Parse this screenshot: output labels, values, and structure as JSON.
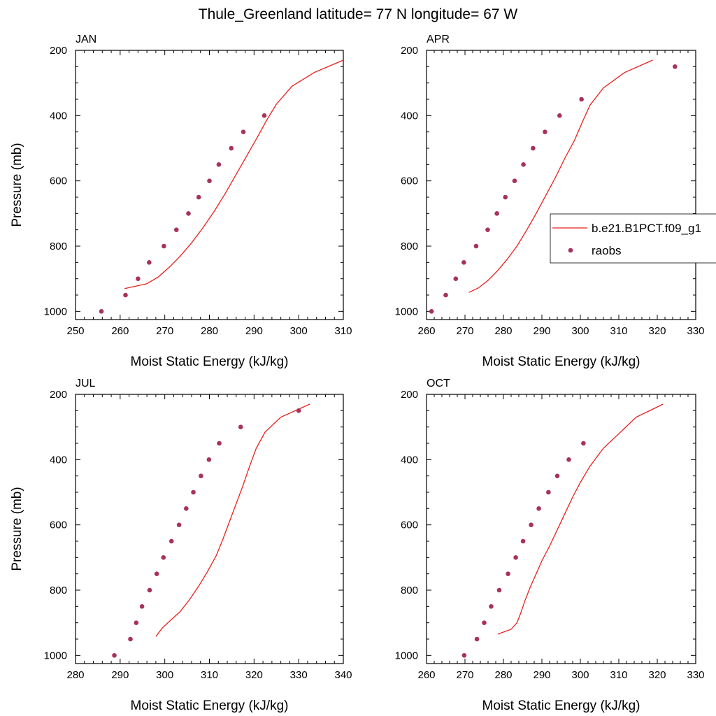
{
  "title": "Thule_Greenland  latitude= 77 N longitude= 67 W",
  "colors": {
    "model_line": "#e8201c",
    "raobs_marker": "#a8325a",
    "frame": "#000000"
  },
  "legend": {
    "items": [
      {
        "label": "b.e21.B1PCT.f09_g1",
        "symbol": "line"
      },
      {
        "label": "raobs",
        "symbol": "dot"
      }
    ]
  },
  "chart_data": [
    {
      "type": "line+scatter",
      "panel": "JAN",
      "xlabel": "Moist Static Energy (kJ/kg)",
      "ylabel": "Pressure (mb)",
      "xlim": [
        250,
        310
      ],
      "ylim": [
        1025,
        200
      ],
      "y_reversed": true,
      "xticks": [
        250,
        260,
        270,
        280,
        290,
        300,
        310
      ],
      "yticks": [
        200,
        400,
        600,
        800,
        1000
      ],
      "model": {
        "name": "b.e21.B1PCT.f09_g1",
        "x": [
          261.0,
          266.0,
          268.5,
          271.0,
          273.5,
          276.0,
          278.5,
          281.0,
          283.5,
          286.0,
          288.5,
          291.0,
          293.0,
          295.0,
          298.5,
          303.5,
          310.0
        ],
        "y": [
          930,
          915,
          895,
          865,
          830,
          790,
          745,
          695,
          640,
          580,
          520,
          460,
          410,
          365,
          310,
          268,
          230
        ]
      },
      "raobs": {
        "name": "raobs",
        "x": [
          255.8,
          261.2,
          264.0,
          266.5,
          269.8,
          272.6,
          275.3,
          277.6,
          280.0,
          282.1,
          284.9,
          287.6,
          292.3
        ],
        "y": [
          1000,
          950,
          900,
          850,
          800,
          750,
          700,
          650,
          600,
          550,
          500,
          450,
          400
        ]
      }
    },
    {
      "type": "line+scatter",
      "panel": "APR",
      "xlabel": "Moist Static Energy (kJ/kg)",
      "ylabel": "",
      "xlim": [
        260,
        330
      ],
      "ylim": [
        1025,
        200
      ],
      "y_reversed": true,
      "xticks": [
        260,
        270,
        280,
        290,
        300,
        310,
        320,
        330
      ],
      "yticks": [
        200,
        400,
        600,
        800,
        1000
      ],
      "model": {
        "name": "b.e21.B1PCT.f09_g1",
        "x": [
          271.0,
          273.5,
          276.0,
          278.5,
          281.0,
          283.5,
          286.0,
          288.5,
          291.0,
          293.5,
          296.0,
          298.5,
          300.5,
          302.5,
          306.0,
          311.5,
          318.8
        ],
        "y": [
          942,
          928,
          905,
          875,
          840,
          800,
          752,
          700,
          645,
          590,
          530,
          475,
          420,
          368,
          315,
          268,
          230
        ]
      },
      "raobs": {
        "name": "raobs",
        "x": [
          261.3,
          265.0,
          267.6,
          269.7,
          272.9,
          275.9,
          278.3,
          280.5,
          282.9,
          285.2,
          287.7,
          290.8,
          294.6,
          300.3,
          324.6
        ],
        "y": [
          1000,
          950,
          900,
          850,
          800,
          750,
          700,
          650,
          600,
          550,
          500,
          450,
          400,
          350,
          250
        ]
      }
    },
    {
      "type": "line+scatter",
      "panel": "JUL",
      "xlabel": "Moist Static Energy (kJ/kg)",
      "ylabel": "Pressure (mb)",
      "xlim": [
        280,
        340
      ],
      "ylim": [
        1025,
        200
      ],
      "y_reversed": true,
      "xticks": [
        280,
        290,
        300,
        310,
        320,
        330,
        340
      ],
      "yticks": [
        200,
        400,
        600,
        800,
        1000
      ],
      "model": {
        "name": "b.e21.B1PCT.f09_g1",
        "x": [
          298.0,
          299.5,
          301.5,
          303.5,
          305.5,
          307.5,
          309.5,
          311.5,
          313.0,
          314.5,
          316.0,
          317.5,
          319.0,
          320.5,
          322.5,
          326.0,
          332.5
        ],
        "y": [
          942,
          915,
          890,
          865,
          830,
          790,
          745,
          695,
          645,
          590,
          535,
          480,
          420,
          365,
          315,
          270,
          230
        ]
      },
      "raobs": {
        "name": "raobs",
        "x": [
          288.7,
          292.3,
          293.6,
          294.9,
          296.6,
          298.2,
          299.7,
          301.5,
          303.2,
          304.8,
          306.4,
          308.1,
          309.9,
          312.2,
          317.0,
          330.0
        ],
        "y": [
          1000,
          950,
          900,
          850,
          800,
          750,
          700,
          650,
          600,
          550,
          500,
          450,
          400,
          350,
          300,
          250
        ]
      }
    },
    {
      "type": "line+scatter",
      "panel": "OCT",
      "xlabel": "Moist Static Energy (kJ/kg)",
      "ylabel": "",
      "xlim": [
        260,
        330
      ],
      "ylim": [
        1025,
        200
      ],
      "y_reversed": true,
      "xticks": [
        260,
        270,
        280,
        290,
        300,
        310,
        320,
        330
      ],
      "yticks": [
        200,
        400,
        600,
        800,
        1000
      ],
      "model": {
        "name": "b.e21.B1PCT.f09_g1",
        "x": [
          278.5,
          282.0,
          283.5,
          284.5,
          285.5,
          287.0,
          288.5,
          290.0,
          292.0,
          294.0,
          296.0,
          298.0,
          300.0,
          302.5,
          306.0,
          310.5,
          314.5,
          321.5
        ],
        "y": [
          935,
          920,
          900,
          870,
          835,
          790,
          750,
          710,
          665,
          615,
          565,
          515,
          470,
          420,
          365,
          315,
          270,
          230
        ]
      },
      "raobs": {
        "name": "raobs",
        "x": [
          269.8,
          273.1,
          275.0,
          276.8,
          278.9,
          281.2,
          283.2,
          285.1,
          287.2,
          289.2,
          291.7,
          294.0,
          297.0,
          300.8
        ],
        "y": [
          1000,
          950,
          900,
          850,
          800,
          750,
          700,
          650,
          600,
          550,
          500,
          450,
          400,
          350
        ]
      }
    }
  ]
}
